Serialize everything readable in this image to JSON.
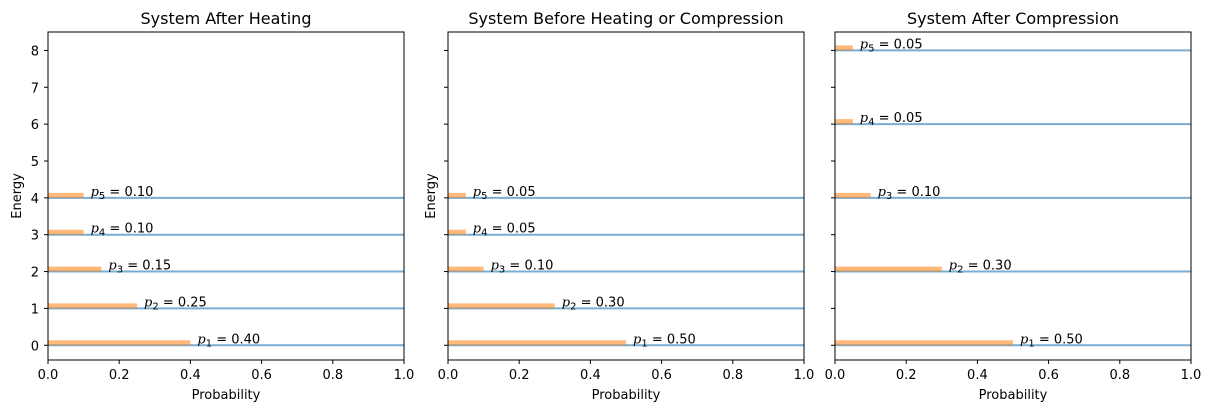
{
  "chart_data": [
    {
      "type": "bar",
      "title": "System After Heating",
      "xlabel": "Probability",
      "ylabel": "Energy",
      "xlim": [
        0,
        1.0
      ],
      "ylim": [
        -0.4,
        8.5
      ],
      "xticks": [
        "0.0",
        "0.2",
        "0.4",
        "0.6",
        "0.8",
        "1.0"
      ],
      "yticks": [
        "0",
        "1",
        "2",
        "3",
        "4",
        "5",
        "6",
        "7",
        "8"
      ],
      "show_ytick_labels": true,
      "levels": [
        {
          "energy": 0,
          "p": 0.4,
          "label_sym": "p",
          "label_sub": "1",
          "label_val": " = 0.40"
        },
        {
          "energy": 1,
          "p": 0.25,
          "label_sym": "p",
          "label_sub": "2",
          "label_val": " = 0.25"
        },
        {
          "energy": 2,
          "p": 0.15,
          "label_sym": "p",
          "label_sub": "3",
          "label_val": " = 0.15"
        },
        {
          "energy": 3,
          "p": 0.1,
          "label_sym": "p",
          "label_sub": "4",
          "label_val": " = 0.10"
        },
        {
          "energy": 4,
          "p": 0.1,
          "label_sym": "p",
          "label_sub": "5",
          "label_val": " = 0.10"
        }
      ]
    },
    {
      "type": "bar",
      "title": "System Before Heating or Compression",
      "xlabel": "Probability",
      "ylabel": "Energy",
      "xlim": [
        0,
        1.0
      ],
      "ylim": [
        -0.4,
        8.5
      ],
      "xticks": [
        "0.0",
        "0.2",
        "0.4",
        "0.6",
        "0.8",
        "1.0"
      ],
      "yticks": [
        "0",
        "1",
        "2",
        "3",
        "4",
        "5",
        "6",
        "7",
        "8"
      ],
      "show_ytick_labels": false,
      "levels": [
        {
          "energy": 0,
          "p": 0.5,
          "label_sym": "p",
          "label_sub": "1",
          "label_val": " = 0.50"
        },
        {
          "energy": 1,
          "p": 0.3,
          "label_sym": "p",
          "label_sub": "2",
          "label_val": " = 0.30"
        },
        {
          "energy": 2,
          "p": 0.1,
          "label_sym": "p",
          "label_sub": "3",
          "label_val": " = 0.10"
        },
        {
          "energy": 3,
          "p": 0.05,
          "label_sym": "p",
          "label_sub": "4",
          "label_val": " = 0.05"
        },
        {
          "energy": 4,
          "p": 0.05,
          "label_sym": "p",
          "label_sub": "5",
          "label_val": " = 0.05"
        }
      ]
    },
    {
      "type": "bar",
      "title": "System After Compression",
      "xlabel": "Probability",
      "ylabel": "",
      "xlim": [
        0,
        1.0
      ],
      "ylim": [
        -0.4,
        8.5
      ],
      "xticks": [
        "0.0",
        "0.2",
        "0.4",
        "0.6",
        "0.8",
        "1.0"
      ],
      "yticks": [
        "0",
        "1",
        "2",
        "3",
        "4",
        "5",
        "6",
        "7",
        "8"
      ],
      "show_ytick_labels": false,
      "levels": [
        {
          "energy": 0,
          "p": 0.5,
          "label_sym": "p",
          "label_sub": "1",
          "label_val": " = 0.50"
        },
        {
          "energy": 2,
          "p": 0.3,
          "label_sym": "p",
          "label_sub": "2",
          "label_val": " = 0.30"
        },
        {
          "energy": 4,
          "p": 0.1,
          "label_sym": "p",
          "label_sub": "3",
          "label_val": " = 0.10"
        },
        {
          "energy": 6,
          "p": 0.05,
          "label_sym": "p",
          "label_sub": "4",
          "label_val": " = 0.05"
        },
        {
          "energy": 8,
          "p": 0.05,
          "label_sym": "p",
          "label_sub": "5",
          "label_val": " = 0.05"
        }
      ]
    }
  ],
  "colors": {
    "level_line": "#1f77b4",
    "probability_bar": "#ff7f0e",
    "axes": "#000000",
    "background": "#ffffff"
  }
}
